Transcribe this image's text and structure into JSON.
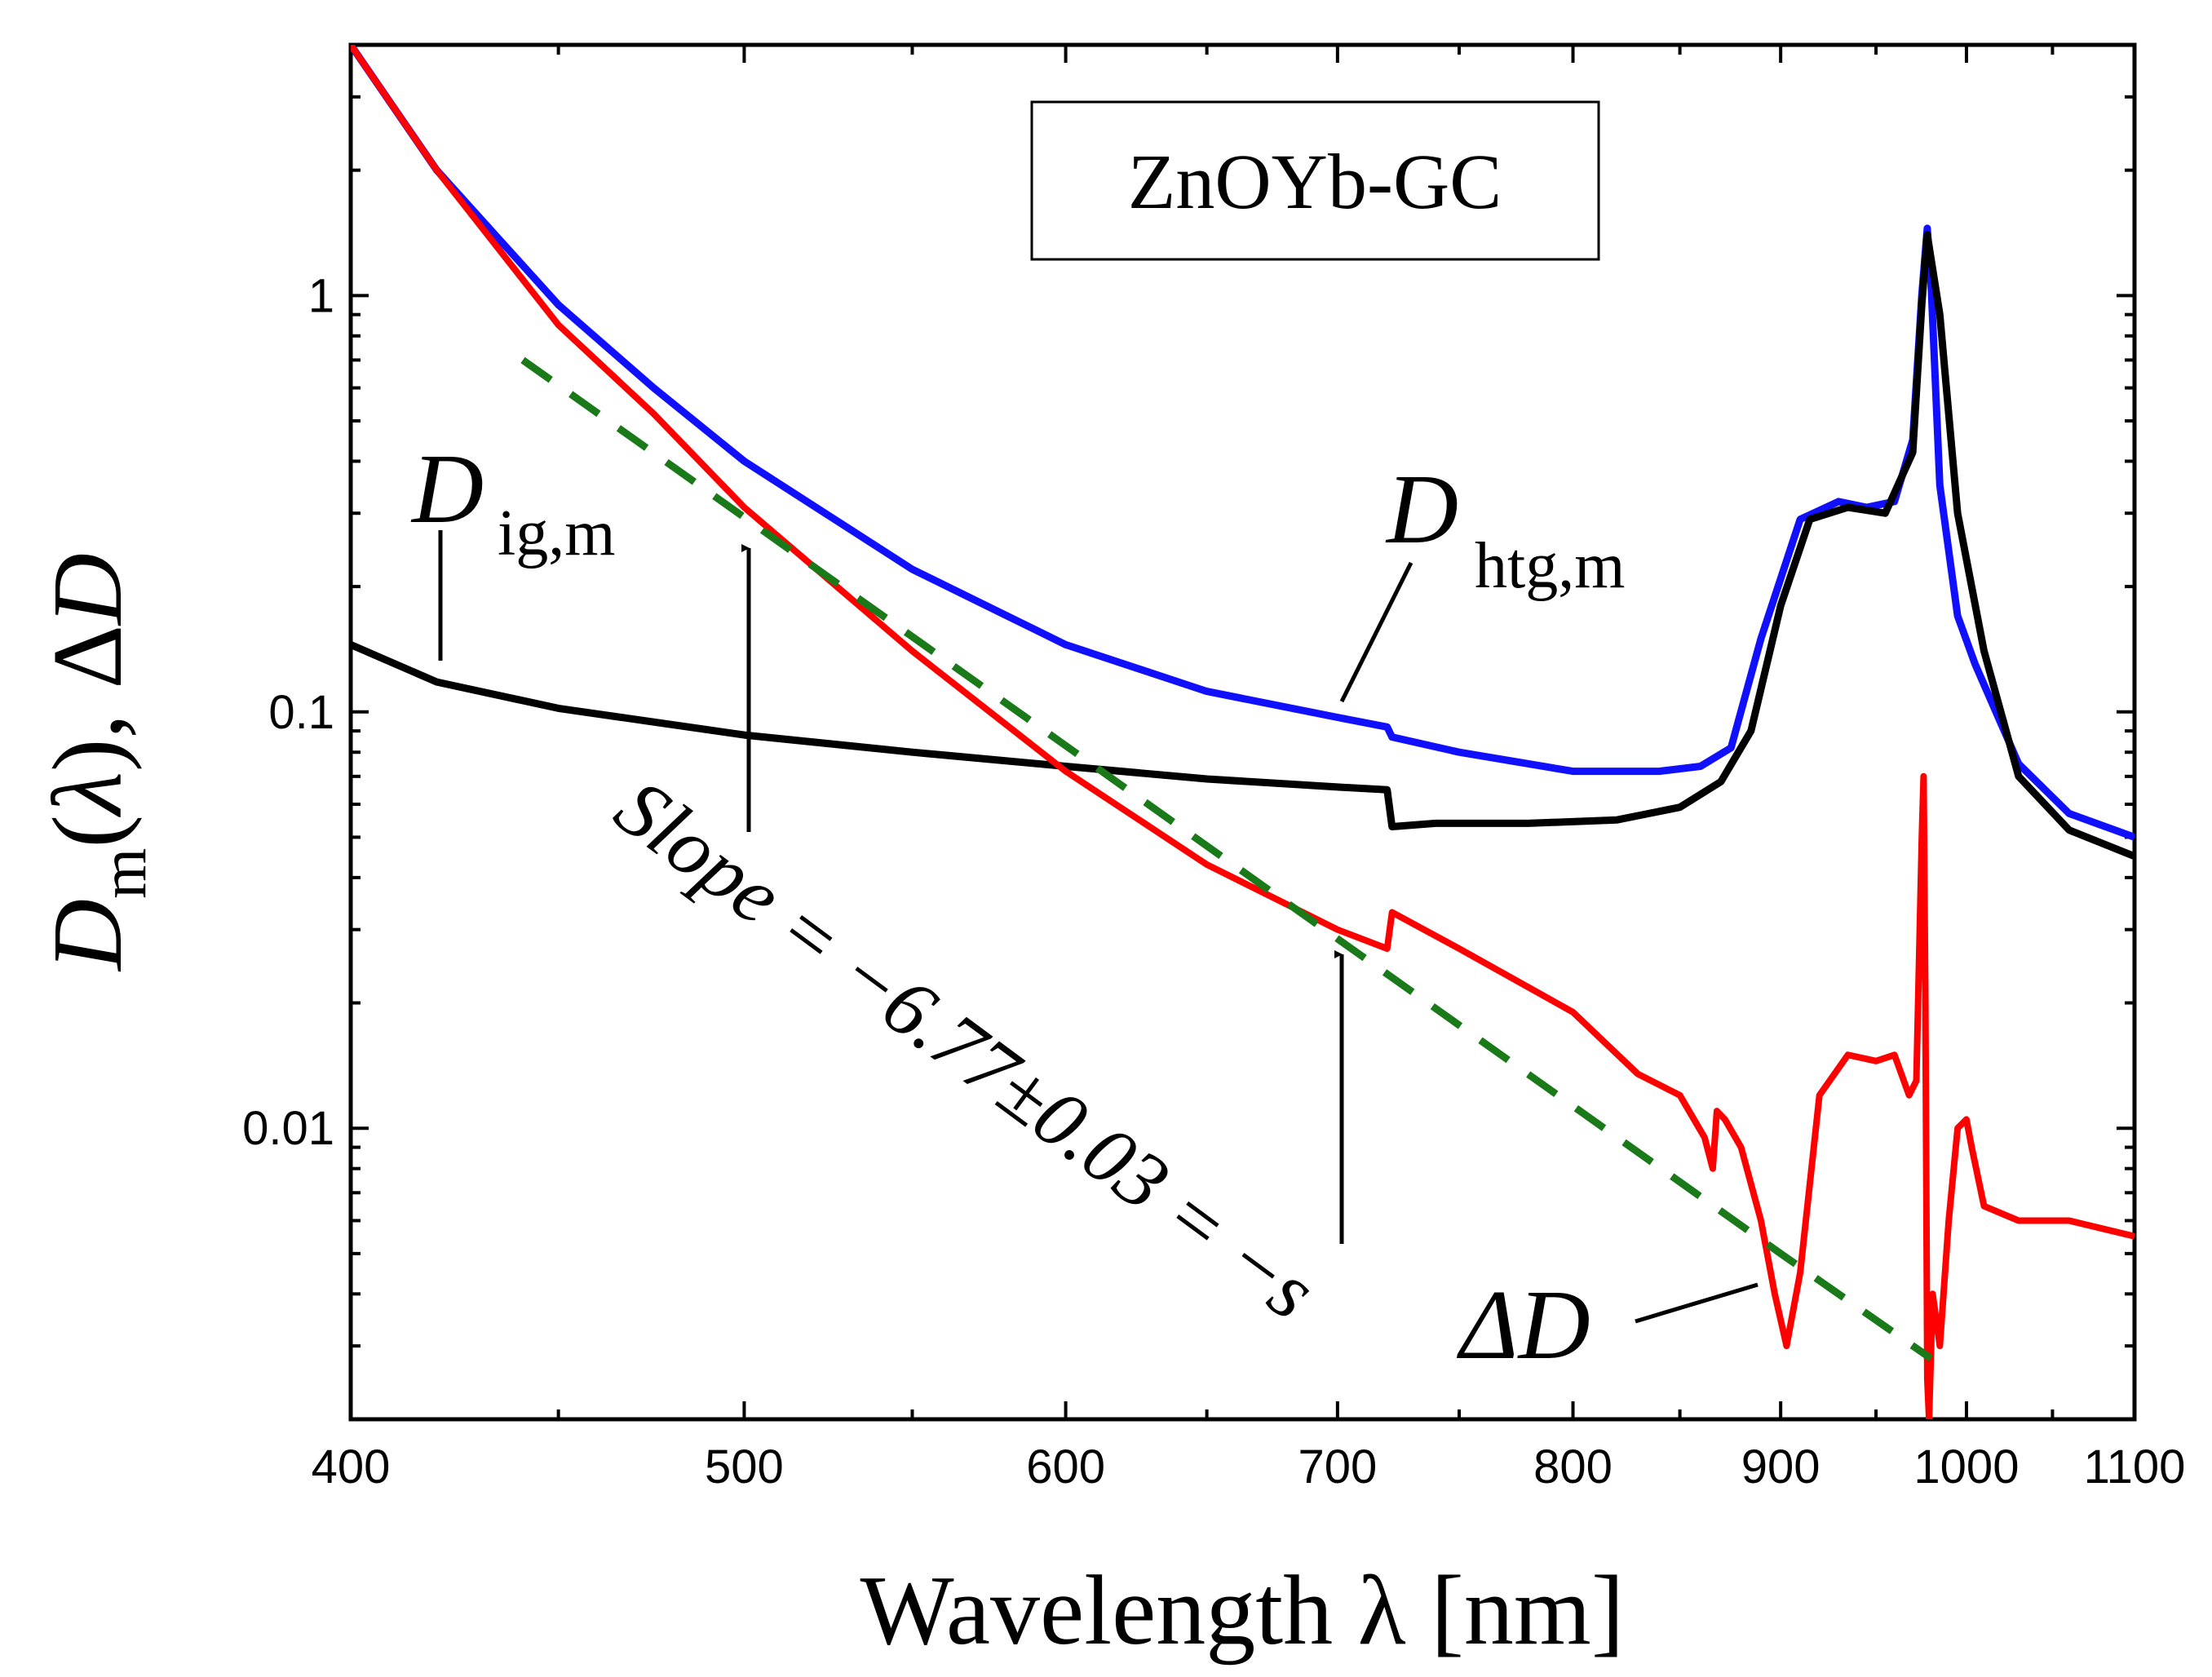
{
  "chart_data": {
    "type": "line",
    "title": "ZnOYb-GC",
    "xlabel": "Wavelength λ [nm]",
    "ylabel": "D_m(λ), ΔD",
    "xscale": "log",
    "yscale": "log",
    "xlim": [
      400,
      1100
    ],
    "ylim": [
      0.002,
      4
    ],
    "x_ticks": [
      400,
      500,
      600,
      700,
      800,
      900,
      1000,
      1100
    ],
    "x_tick_labels": [
      "400",
      "500",
      "600",
      "700",
      "800",
      "900",
      "1000",
      "1100"
    ],
    "y_ticks": [
      0.01,
      0.1,
      1
    ],
    "y_tick_labels": [
      "0.01",
      "0.1",
      "1"
    ],
    "colors": {
      "D_htg_m": "#1010ff",
      "D_ig_m": "#000000",
      "Delta_D": "#ff0000",
      "fit": "#1a7a1a"
    },
    "series": [
      {
        "name": "D_htg,m",
        "x": [
          400,
          420,
          450,
          475,
          500,
          550,
          600,
          650,
          700,
          720,
          722,
          750,
          800,
          840,
          860,
          875,
          890,
          910,
          930,
          945,
          960,
          970,
          975,
          978,
          980,
          985,
          995,
          1005,
          1030,
          1060,
          1100
        ],
        "y": [
          4.0,
          2.0,
          0.95,
          0.6,
          0.4,
          0.22,
          0.145,
          0.112,
          0.097,
          0.092,
          0.087,
          0.08,
          0.072,
          0.072,
          0.074,
          0.082,
          0.15,
          0.29,
          0.32,
          0.31,
          0.32,
          0.45,
          1.0,
          1.45,
          1.1,
          0.35,
          0.17,
          0.13,
          0.075,
          0.057,
          0.05
        ]
      },
      {
        "name": "D_ig,m",
        "x": [
          400,
          420,
          450,
          500,
          550,
          600,
          650,
          700,
          720,
          722,
          740,
          780,
          820,
          850,
          870,
          885,
          900,
          915,
          935,
          955,
          970,
          975,
          978,
          985,
          995,
          1010,
          1030,
          1060,
          1100
        ],
        "y": [
          0.145,
          0.118,
          0.102,
          0.088,
          0.08,
          0.074,
          0.069,
          0.066,
          0.065,
          0.053,
          0.054,
          0.054,
          0.055,
          0.059,
          0.068,
          0.09,
          0.18,
          0.29,
          0.31,
          0.3,
          0.42,
          0.95,
          1.4,
          0.9,
          0.3,
          0.14,
          0.07,
          0.052,
          0.045
        ]
      },
      {
        "name": "ΔD",
        "x": [
          400,
          420,
          450,
          475,
          500,
          550,
          600,
          650,
          700,
          720,
          722,
          750,
          800,
          830,
          850,
          862,
          866,
          868,
          872,
          880,
          890,
          897,
          903,
          910,
          920,
          935,
          950,
          960,
          968,
          972,
          975,
          976,
          977,
          978,
          979,
          981,
          985,
          990,
          995,
          1000,
          1003,
          1010,
          1030,
          1060,
          1100
        ],
        "y": [
          4.0,
          2.0,
          0.85,
          0.52,
          0.31,
          0.14,
          0.072,
          0.043,
          0.03,
          0.027,
          0.033,
          0.027,
          0.019,
          0.0135,
          0.012,
          0.0095,
          0.008,
          0.011,
          0.0105,
          0.009,
          0.006,
          0.004,
          0.003,
          0.0045,
          0.012,
          0.015,
          0.0145,
          0.015,
          0.012,
          0.013,
          0.05,
          0.07,
          0.02,
          0.0025,
          0.002,
          0.004,
          0.003,
          0.006,
          0.01,
          0.0105,
          0.009,
          0.0065,
          0.006,
          0.006,
          0.0055
        ]
      },
      {
        "name": "fit",
        "style": "dashed",
        "x": [
          441,
          900,
          980
        ],
        "y": [
          0.7,
          0.005,
          0.0028
        ]
      }
    ],
    "annotations": {
      "box_label": "ZnOYb-GC",
      "d_ig_main": "D",
      "d_ig_sub": "ig,m",
      "d_htg_main": "D",
      "d_htg_sub": "htg,m",
      "delta_d": "ΔD",
      "slope_text": "Slope = −6.77±0.03 = −s"
    }
  }
}
